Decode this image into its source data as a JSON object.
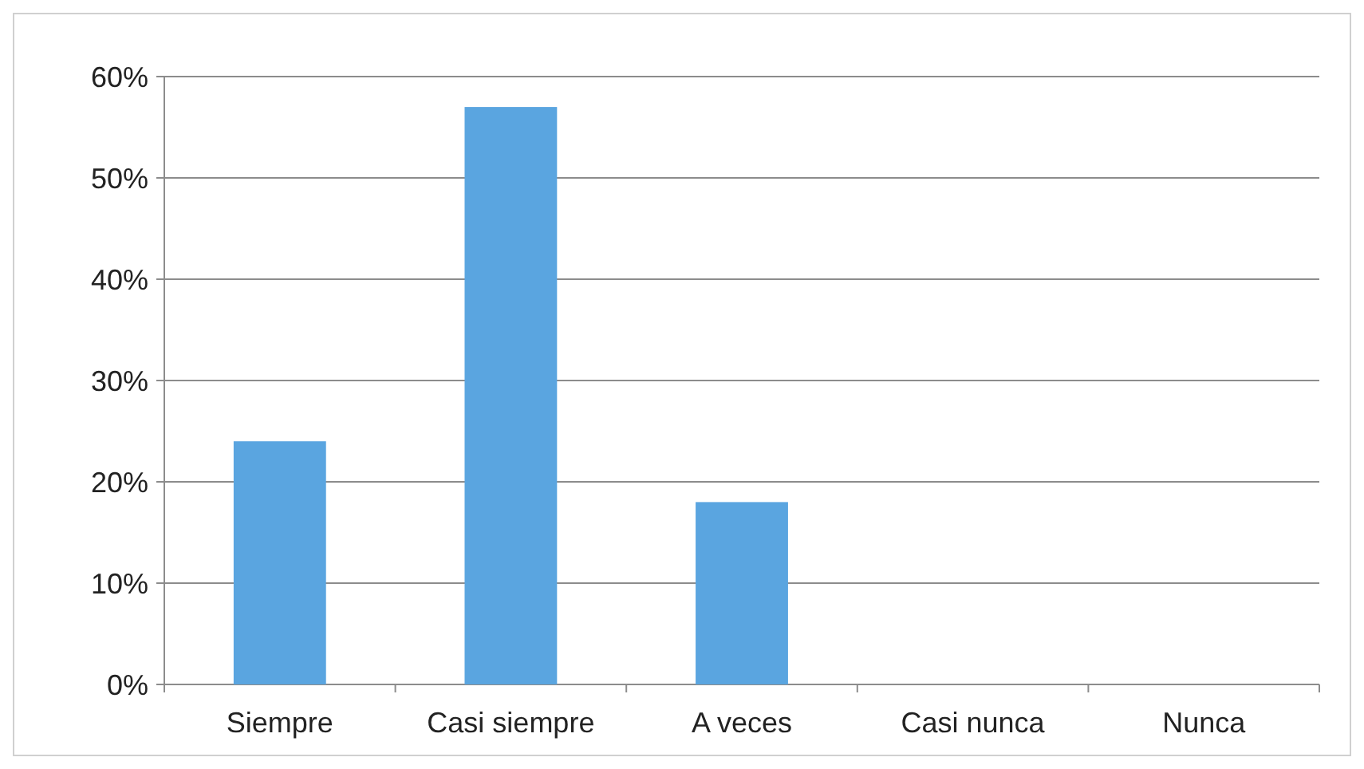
{
  "chart_data": {
    "type": "bar",
    "categories": [
      "Siempre",
      "Casi siempre",
      "A veces",
      "Casi nunca",
      "Nunca"
    ],
    "values": [
      24,
      57,
      18,
      0,
      0
    ],
    "color": "#5aa5e0",
    "ylim": [
      0,
      60
    ],
    "yticks": [
      {
        "value": 0,
        "label": "0%"
      },
      {
        "value": 10,
        "label": "10%"
      },
      {
        "value": 20,
        "label": "20%"
      },
      {
        "value": 30,
        "label": "30%"
      },
      {
        "value": 40,
        "label": "40%"
      },
      {
        "value": 50,
        "label": "50%"
      },
      {
        "value": 60,
        "label": "60%"
      }
    ],
    "grid": "y"
  }
}
